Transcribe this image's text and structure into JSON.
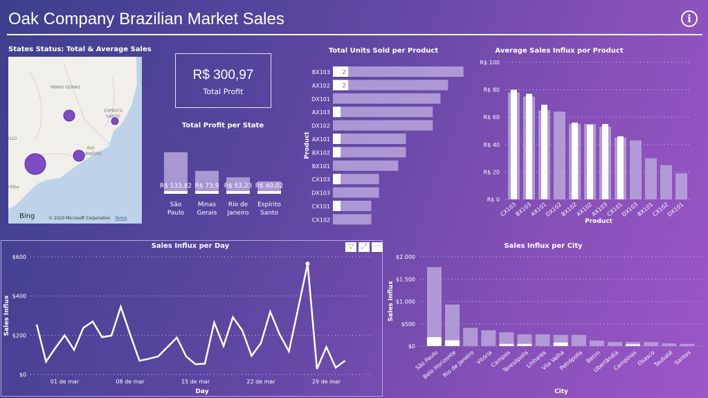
{
  "header": {
    "title": "Oak Company Brazilian Market Sales",
    "info_icon": "info-icon"
  },
  "map": {
    "title": "States Status: Total & Average Sales",
    "labels": [
      "MINAS GERAIS",
      "ESPÍRITO",
      "SANTO",
      "RIO",
      "JANEIRO",
      "ULO",
      "ritiba",
      "Sa",
      "o"
    ],
    "attribution": "© 2020 Microsoft Corporation",
    "terms": "Terms",
    "brand": "Bing"
  },
  "kpi": {
    "value": "R$ 300,97",
    "label": "Total Profit"
  },
  "colors": {
    "bar": "#b9a6dc",
    "highlight": "#ffffff",
    "map_bubble": "#7b4cc4",
    "land": "#f1efe9",
    "water": "#bcd3e8"
  },
  "chart_data": [
    {
      "id": "profit_state",
      "type": "bar",
      "title": "Total Profit per State",
      "categories": [
        "São Paulo",
        "Minas Gerais",
        "Rio de Janeiro",
        "Espírito Santo"
      ],
      "category_lines": [
        [
          "São",
          "Paulo"
        ],
        [
          "Minas",
          "Gerais"
        ],
        [
          "Rio de",
          "Janeiro"
        ],
        [
          "Espírito",
          "Santo"
        ]
      ],
      "values": [
        133.82,
        73.9,
        53.23,
        40.02
      ],
      "data_labels": [
        "R$ 133,82",
        "R$ 73,9",
        "R$ 53,23",
        "R$ 40,02"
      ],
      "highlight": [
        15,
        7,
        5,
        4
      ]
    },
    {
      "id": "units",
      "type": "bar",
      "orientation": "horizontal",
      "title": "Total Units Sold per Product",
      "ylabel": "Product",
      "categories": [
        "BX103",
        "AX102",
        "DX101",
        "AX103",
        "DX102",
        "AX101",
        "BX102",
        "BX101",
        "CX103",
        "DX103",
        "CX101",
        "CX102"
      ],
      "values": [
        17,
        15,
        14,
        13,
        13,
        9.5,
        9.5,
        8.5,
        6,
        6,
        5,
        5
      ],
      "highlight": [
        2,
        2,
        0,
        1,
        0,
        1,
        1,
        0,
        1,
        0,
        1,
        0
      ],
      "data_labels": [
        "2",
        "2",
        "",
        "",
        "",
        "",
        "",
        "",
        "",
        "",
        "",
        ""
      ]
    },
    {
      "id": "avg_product",
      "type": "bar",
      "title": "Average Sales Influx por Product",
      "xlabel": "Product",
      "ylim": [
        0,
        100
      ],
      "ticks": [
        "R$ 0",
        "R$ 20",
        "R$ 40",
        "R$ 60",
        "R$ 80",
        "R$ 100"
      ],
      "tick_values": [
        0,
        20,
        40,
        60,
        80,
        100
      ],
      "categories": [
        "CX103",
        "BX103",
        "AX101",
        "DX102",
        "BX102",
        "AX102",
        "AX103",
        "CX101",
        "DX103",
        "BX101",
        "CX102",
        "DX101"
      ],
      "values": [
        78,
        75,
        65,
        64,
        55,
        55,
        53,
        45,
        43,
        30,
        25,
        19
      ],
      "highlight": [
        80,
        77,
        69,
        null,
        56,
        54.5,
        55,
        46,
        null,
        null,
        null,
        null
      ]
    },
    {
      "id": "day",
      "type": "line",
      "title": "Sales Influx per Day",
      "xlabel": "Day",
      "ylabel": "Sales Influx",
      "ylim": [
        0,
        600
      ],
      "ticks": [
        "$0",
        "$200",
        "$400",
        "$600"
      ],
      "tick_values": [
        0,
        200,
        400,
        600
      ],
      "x_ticks": [
        "01 de mar",
        "08 de mar",
        "15 de mar",
        "22 de mar",
        "29 de mar"
      ],
      "x_tick_index": [
        3,
        10,
        17,
        24,
        31
      ],
      "values": [
        255,
        65,
        135,
        200,
        125,
        238,
        270,
        190,
        198,
        345,
        205,
        70,
        80,
        92,
        140,
        188,
        92,
        52,
        55,
        265,
        145,
        292,
        225,
        95,
        160,
        320,
        205,
        118,
        340,
        565,
        28,
        140,
        35,
        70
      ],
      "marker_index": 29
    },
    {
      "id": "city",
      "type": "bar",
      "title": "Sales Influx per City",
      "xlabel": "City",
      "ylabel": "Sales Influx",
      "ylim": [
        0,
        2000
      ],
      "ticks": [
        "$0",
        "$500",
        "$1.000",
        "$1.500",
        "$2.000"
      ],
      "tick_values": [
        0,
        500,
        1000,
        1500,
        2000
      ],
      "categories": [
        "São Paulo",
        "Belo Horizonte",
        "Rio de Janeiro",
        "Vitória",
        "Campos",
        "Teresópolis",
        "Linhares",
        "Vila Velha",
        "Petrópolis",
        "Betim",
        "Uberlândia",
        "Campinas",
        "Osasco",
        "Taubaté",
        "Santos"
      ],
      "values": [
        1770,
        930,
        410,
        355,
        310,
        265,
        265,
        250,
        250,
        125,
        90,
        90,
        90,
        60,
        50
      ],
      "highlight": [
        200,
        130,
        0,
        0,
        50,
        50,
        0,
        80,
        0,
        0,
        0,
        40,
        0,
        0,
        0
      ]
    }
  ],
  "toolbar": {
    "filter_icon": "filter-icon",
    "focus_icon": "focus-mode-icon",
    "more": "···"
  }
}
